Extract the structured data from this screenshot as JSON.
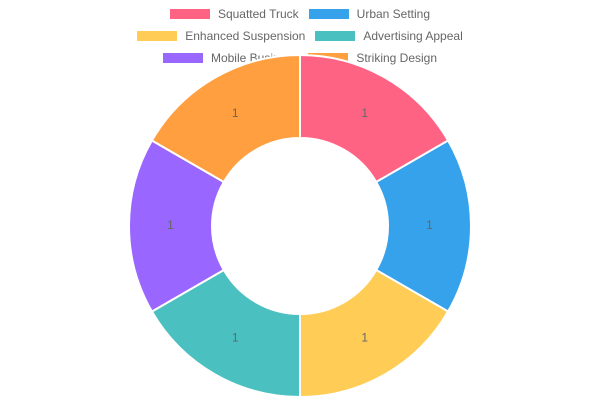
{
  "chart_data": {
    "type": "doughnut",
    "categories": [
      "Squatted Truck",
      "Urban Setting",
      "Enhanced Suspension",
      "Advertising Appeal",
      "Mobile Business",
      "Striking Design"
    ],
    "values": [
      1,
      1,
      1,
      1,
      1,
      1
    ],
    "colors": [
      "#ff6384",
      "#36a2eb",
      "#ffcd56",
      "#4bc0c0",
      "#9966ff",
      "#ff9f40"
    ],
    "legend": "top"
  }
}
